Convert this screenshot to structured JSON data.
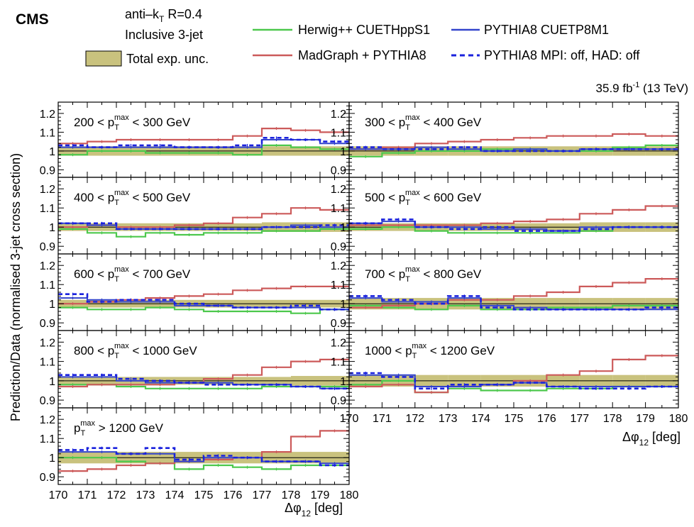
{
  "header": {
    "experiment": "CMS",
    "algo_prefix": "anti–k",
    "algo_sub": "T",
    "algo_suffix": " R=0.4",
    "selection": "Inclusive 3-jet",
    "lumi": "35.9 fb",
    "lumi_exp": "-1",
    "energy": " (13 TeV)"
  },
  "legend": {
    "band_label": "Total exp. unc.",
    "entries": [
      "Herwig++ CUETHppS1",
      "MadGraph + PYTHIA8",
      "PYTHIA8 CUETP8M1",
      "PYTHIA8 MPI: off, HAD: off"
    ]
  },
  "colors": {
    "herwig": "#4cc84c",
    "madgraph": "#cc5a5a",
    "pythia": "#3344cc",
    "pythia_nompi": "#1a22dd",
    "band": "#c9c27e",
    "band_edge": "#a9a25c"
  },
  "axis": {
    "y_label": "Prediction/Data (normalised 3-jet cross section)",
    "x_label_prefix": "Δφ",
    "x_label_sub": "12",
    "x_label_suffix": " [deg]",
    "y_ticks": [
      "0.9",
      "1",
      "1.1",
      "1.2"
    ],
    "x_ticks": [
      "170",
      "171",
      "172",
      "173",
      "174",
      "175",
      "176",
      "177",
      "178",
      "179",
      "180"
    ]
  },
  "chart_data": {
    "type": "line",
    "style": "step",
    "xlim": [
      170,
      180
    ],
    "ylim": [
      0.86,
      1.26
    ],
    "bins": [
      170,
      171,
      172,
      173,
      174,
      175,
      176,
      177,
      178,
      179,
      180
    ],
    "panels": [
      {
        "label": "200 < p_T^max < 300 GeV",
        "band": [
          0.025,
          0.025,
          0.025,
          0.025,
          0.025,
          0.025,
          0.025,
          0.025,
          0.025,
          0.025
        ],
        "herwig": [
          0.98,
          1.0,
          1.0,
          0.99,
          0.99,
          0.99,
          0.98,
          1.03,
          1.02,
          1.01
        ],
        "madgraph": [
          1.04,
          1.05,
          1.06,
          1.06,
          1.06,
          1.06,
          1.08,
          1.12,
          1.11,
          1.1
        ],
        "pythia": [
          1.02,
          1.02,
          1.02,
          1.02,
          1.02,
          1.02,
          1.02,
          1.06,
          1.06,
          1.04
        ],
        "pythia_nompi": [
          1.03,
          1.02,
          1.03,
          1.03,
          1.02,
          1.02,
          1.03,
          1.07,
          1.06,
          1.05
        ]
      },
      {
        "label": "400 < p_T^max < 500 GeV",
        "band": [
          0.02,
          0.02,
          0.02,
          0.02,
          0.02,
          0.02,
          0.02,
          0.025,
          0.025,
          0.025
        ],
        "herwig": [
          0.99,
          0.97,
          0.95,
          0.97,
          0.96,
          0.97,
          0.97,
          0.98,
          0.98,
          0.99
        ],
        "madgraph": [
          1.0,
          1.01,
          1.0,
          1.0,
          1.01,
          1.02,
          1.05,
          1.07,
          1.1,
          1.09
        ],
        "pythia": [
          1.02,
          1.01,
          0.99,
          0.99,
          0.99,
          0.99,
          0.99,
          1.0,
          1.01,
          1.0
        ],
        "pythia_nompi": [
          1.02,
          1.02,
          0.99,
          0.99,
          0.99,
          0.99,
          0.99,
          1.0,
          1.0,
          1.01
        ]
      },
      {
        "label": "600 < p_T^max < 700 GeV",
        "band": [
          0.02,
          0.02,
          0.02,
          0.02,
          0.02,
          0.02,
          0.02,
          0.02,
          0.02,
          0.02
        ],
        "herwig": [
          0.98,
          0.97,
          0.97,
          0.98,
          0.97,
          0.96,
          0.96,
          0.96,
          0.95,
          0.97
        ],
        "madgraph": [
          1.0,
          1.01,
          1.02,
          1.03,
          1.04,
          1.05,
          1.07,
          1.08,
          1.09,
          1.09
        ],
        "pythia": [
          1.03,
          1.02,
          1.01,
          1.01,
          0.99,
          0.99,
          0.98,
          0.98,
          0.98,
          0.97
        ],
        "pythia_nompi": [
          1.05,
          1.01,
          1.02,
          1.02,
          1.0,
          0.99,
          0.98,
          0.98,
          0.99,
          0.97
        ]
      },
      {
        "label": "800 < p_T^max < 1000 GeV",
        "band": [
          0.02,
          0.02,
          0.02,
          0.02,
          0.02,
          0.02,
          0.02,
          0.02,
          0.025,
          0.025
        ],
        "herwig": [
          0.98,
          0.98,
          0.97,
          0.96,
          0.96,
          0.96,
          0.96,
          0.97,
          0.97,
          0.97
        ],
        "madgraph": [
          0.97,
          0.98,
          0.98,
          0.98,
          0.99,
          1.01,
          1.03,
          1.07,
          1.1,
          1.11
        ],
        "pythia": [
          1.02,
          1.02,
          1.0,
          0.99,
          0.99,
          0.99,
          0.98,
          0.98,
          0.97,
          0.96
        ],
        "pythia_nompi": [
          1.03,
          1.03,
          1.01,
          1.0,
          0.99,
          0.98,
          0.98,
          0.98,
          0.97,
          0.96
        ]
      },
      {
        "label": "p_T^max > 1200 GeV",
        "band": [
          0.03,
          0.03,
          0.03,
          0.03,
          0.03,
          0.03,
          0.03,
          0.03,
          0.03,
          0.03
        ],
        "herwig": [
          1.0,
          1.0,
          0.98,
          0.97,
          0.94,
          0.96,
          0.95,
          0.94,
          0.96,
          0.96
        ],
        "madgraph": [
          0.93,
          0.94,
          0.96,
          0.97,
          0.98,
          0.99,
          1.0,
          1.03,
          1.11,
          1.14
        ],
        "pythia": [
          1.03,
          1.03,
          1.02,
          1.02,
          0.98,
          1.0,
          1.0,
          0.98,
          0.98,
          0.97
        ],
        "pythia_nompi": [
          1.04,
          1.05,
          1.02,
          1.05,
          0.99,
          1.01,
          1.0,
          0.98,
          0.98,
          0.96
        ]
      },
      {
        "label": "300 < p_T^max < 400 GeV",
        "band": [
          0.025,
          0.025,
          0.025,
          0.025,
          0.025,
          0.025,
          0.025,
          0.025,
          0.025,
          0.025
        ],
        "herwig": [
          0.97,
          0.99,
          1.0,
          1.0,
          1.01,
          1.01,
          1.0,
          1.0,
          1.02,
          1.03
        ],
        "madgraph": [
          1.01,
          1.02,
          1.04,
          1.05,
          1.06,
          1.07,
          1.08,
          1.08,
          1.09,
          1.08
        ],
        "pythia": [
          1.01,
          1.01,
          1.02,
          1.01,
          1.0,
          1.01,
          1.0,
          1.01,
          1.01,
          1.01
        ],
        "pythia_nompi": [
          1.02,
          1.01,
          1.01,
          1.02,
          1.0,
          1.0,
          1.0,
          1.01,
          1.01,
          1.01
        ]
      },
      {
        "label": "500 < p_T^max < 600 GeV",
        "band": [
          0.02,
          0.02,
          0.02,
          0.02,
          0.02,
          0.02,
          0.02,
          0.025,
          0.025,
          0.025
        ],
        "herwig": [
          0.99,
          1.0,
          0.98,
          0.97,
          0.97,
          0.97,
          0.97,
          0.98,
          1.0,
          1.0
        ],
        "madgraph": [
          1.01,
          1.01,
          1.01,
          1.01,
          1.02,
          1.03,
          1.04,
          1.07,
          1.09,
          1.11
        ],
        "pythia": [
          1.02,
          1.03,
          1.0,
          1.0,
          0.99,
          0.99,
          0.98,
          1.0,
          1.0,
          1.0
        ],
        "pythia_nompi": [
          1.02,
          1.04,
          1.0,
          0.99,
          1.0,
          0.98,
          0.98,
          0.99,
          1.0,
          1.0
        ]
      },
      {
        "label": "700 < p_T^max < 800 GeV",
        "band": [
          0.03,
          0.03,
          0.03,
          0.03,
          0.03,
          0.03,
          0.03,
          0.03,
          0.03,
          0.03
        ],
        "herwig": [
          0.99,
          0.98,
          0.97,
          0.99,
          0.97,
          0.97,
          0.98,
          0.98,
          0.99,
          0.99
        ],
        "madgraph": [
          0.98,
          0.99,
          1.0,
          1.02,
          1.02,
          1.04,
          1.06,
          1.09,
          1.11,
          1.13
        ],
        "pythia": [
          1.03,
          1.01,
          1.01,
          1.03,
          0.99,
          0.98,
          0.97,
          0.97,
          0.97,
          0.97
        ],
        "pythia_nompi": [
          1.04,
          1.02,
          1.0,
          1.04,
          0.98,
          0.97,
          0.97,
          0.97,
          0.97,
          0.98
        ]
      },
      {
        "label": "1000 < p_T^max < 1200 GeV",
        "band": [
          0.03,
          0.03,
          0.03,
          0.03,
          0.03,
          0.03,
          0.03,
          0.03,
          0.03,
          0.03
        ],
        "herwig": [
          0.98,
          1.0,
          0.94,
          0.96,
          0.95,
          0.95,
          0.96,
          0.96,
          0.97,
          0.97
        ],
        "madgraph": [
          0.97,
          0.98,
          0.94,
          0.97,
          0.98,
          1.0,
          1.03,
          1.05,
          1.11,
          1.13
        ],
        "pythia": [
          1.03,
          1.03,
          0.97,
          0.97,
          0.98,
          0.99,
          0.97,
          0.97,
          0.97,
          0.97
        ],
        "pythia_nompi": [
          1.04,
          1.02,
          0.96,
          0.98,
          0.98,
          0.99,
          0.97,
          0.96,
          0.96,
          0.97
        ]
      }
    ]
  }
}
